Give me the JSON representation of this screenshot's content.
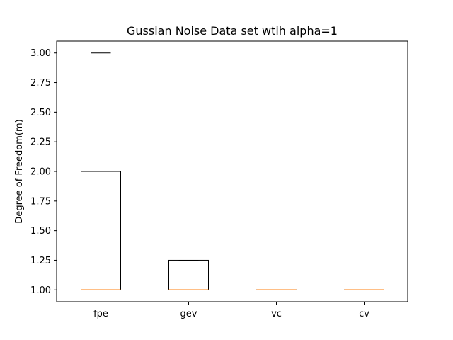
{
  "chart_data": {
    "type": "box",
    "title": "Gussian Noise Data set wtih alpha=1",
    "xlabel": "",
    "ylabel": "Degree of Freedom(m)",
    "categories": [
      "fpe",
      "gev",
      "vc",
      "cv"
    ],
    "boxes": [
      {
        "name": "fpe",
        "whisker_low": 1.0,
        "q1": 1.0,
        "median": 1.0,
        "q3": 2.0,
        "whisker_high": 3.0
      },
      {
        "name": "gev",
        "whisker_low": 1.0,
        "q1": 1.0,
        "median": 1.0,
        "q3": 1.25,
        "whisker_high": 1.25
      },
      {
        "name": "vc",
        "whisker_low": 1.0,
        "q1": 1.0,
        "median": 1.0,
        "q3": 1.0,
        "whisker_high": 1.0
      },
      {
        "name": "cv",
        "whisker_low": 1.0,
        "q1": 1.0,
        "median": 1.0,
        "q3": 1.0,
        "whisker_high": 1.0
      }
    ],
    "ylim": [
      0.9,
      3.1
    ],
    "yticks": [
      "1.00",
      "1.25",
      "1.50",
      "1.75",
      "2.00",
      "2.25",
      "2.50",
      "2.75",
      "3.00"
    ],
    "grid": false,
    "colors": {
      "box": "#000000",
      "median": "#ff7f0e"
    }
  }
}
